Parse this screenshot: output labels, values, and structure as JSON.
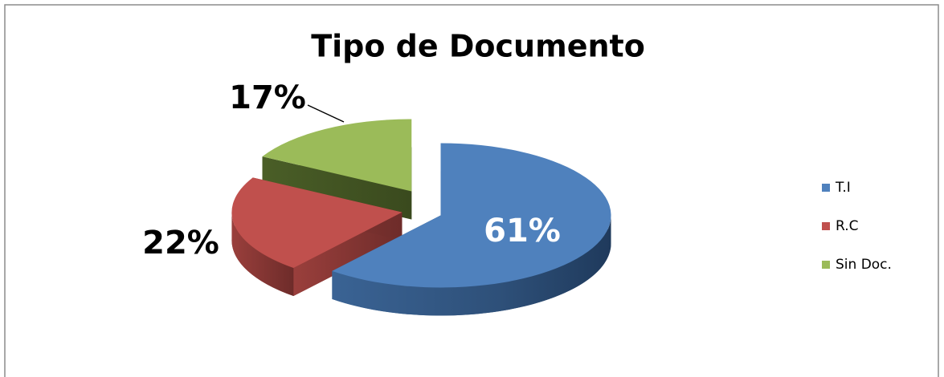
{
  "chart_data": {
    "type": "pie",
    "title": "Tipo de Documento",
    "categories": [
      "T.I",
      "R.C",
      "Sin Doc."
    ],
    "values": [
      61,
      22,
      17
    ],
    "value_labels": [
      "61%",
      "22%",
      "17%"
    ],
    "colors": [
      "#4f81bd",
      "#c0504d",
      "#9bbb59"
    ],
    "legend": "right"
  }
}
